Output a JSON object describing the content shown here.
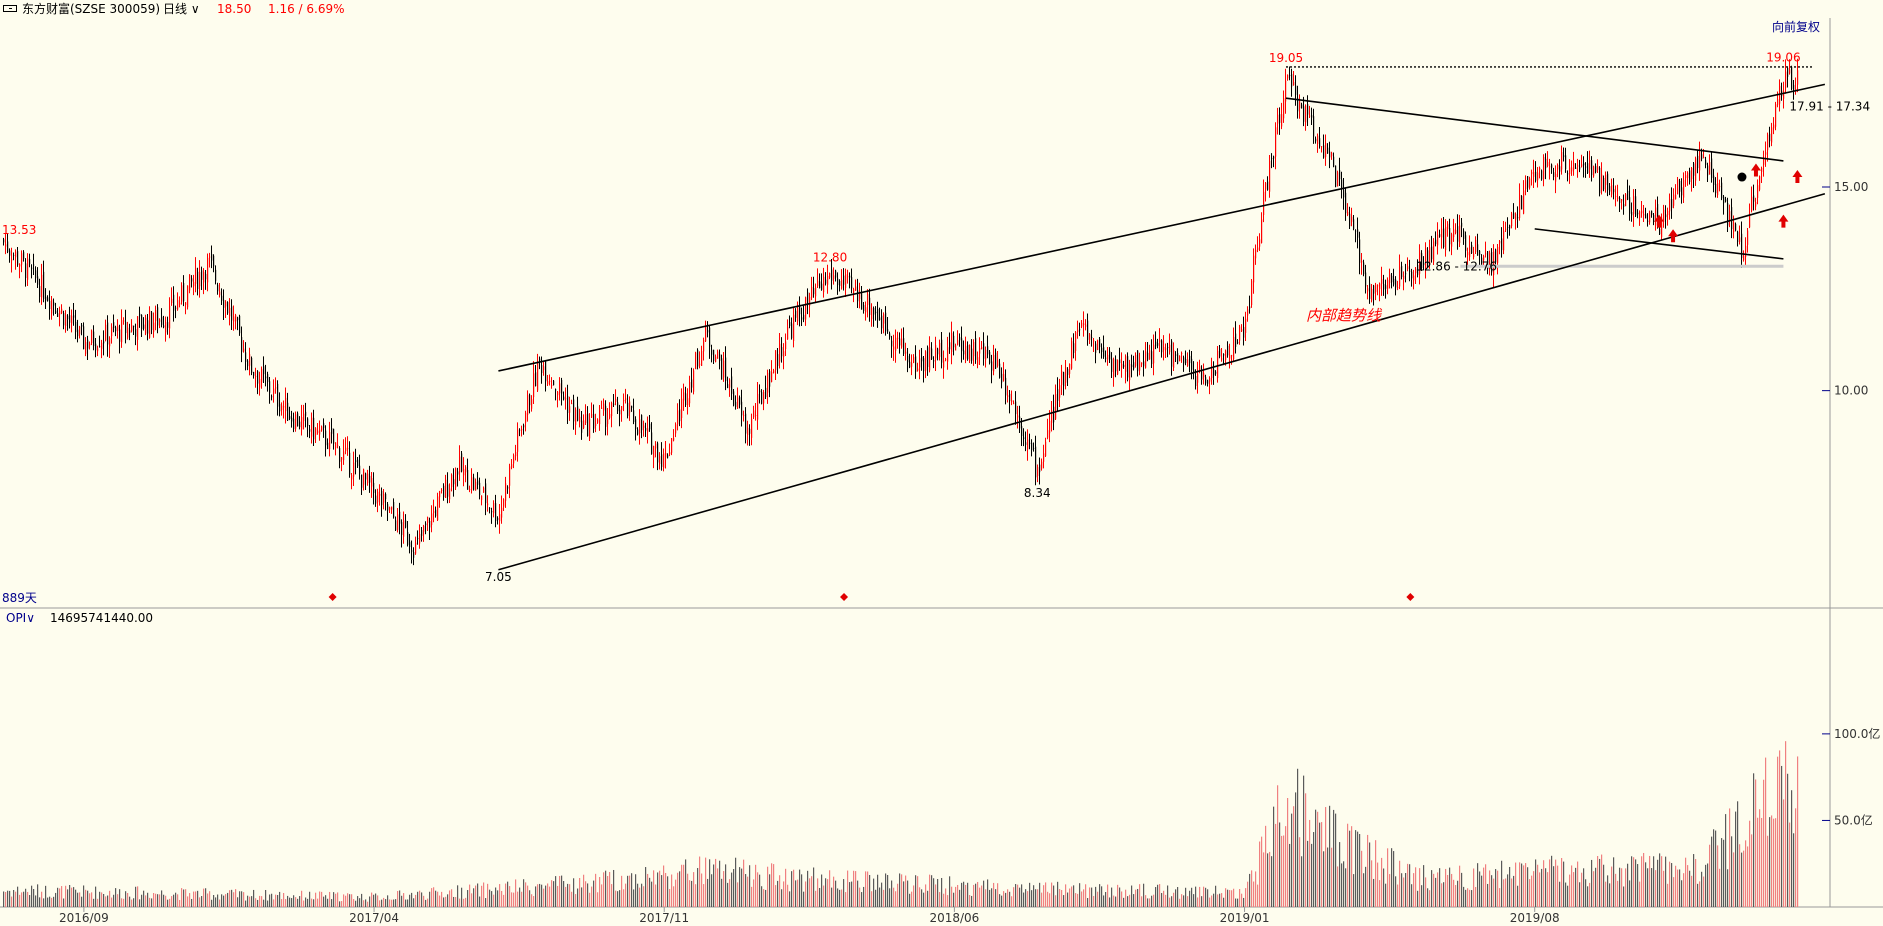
{
  "header": {
    "stock_name": "东方财富(SZSE 300059)",
    "period": "日线",
    "price": "18.50",
    "change": "1.16 / 6.69%"
  },
  "adjust_label": "向前复权",
  "day_count_label": "889天",
  "opi": {
    "label": "OPI",
    "value": "14695741440.00"
  },
  "colors": {
    "background": "#fefdee",
    "up": "#ff0000",
    "down": "#000000",
    "volume_up": "#f08080",
    "volume_down": "#5a5a5a",
    "label_blue": "#00008b"
  },
  "chart_data": {
    "type": "candlestick",
    "y_scale": "log",
    "x_tick_labels": [
      "2016/09",
      "2017/04",
      "2017/11",
      "2018/06",
      "2019/01",
      "2019/08"
    ],
    "price_axis": {
      "ticks": [
        10.0,
        15.0
      ],
      "tick_labels": [
        "10.00",
        "15.00"
      ],
      "range": [
        6.5,
        21.0
      ]
    },
    "volume_axis": {
      "ticks": [
        50,
        100
      ],
      "tick_labels": [
        "50.0亿",
        "100.0亿"
      ],
      "range": [
        0,
        160
      ]
    },
    "price_anchors": [
      {
        "date": "2016-07",
        "close": 13.5
      },
      {
        "date": "2016-09",
        "close": 11.0
      },
      {
        "date": "2016-11",
        "close": 11.6
      },
      {
        "date": "2016-12",
        "close": 12.9
      },
      {
        "date": "2017-01",
        "close": 10.5
      },
      {
        "date": "2017-02",
        "close": 9.5
      },
      {
        "date": "2017-03",
        "close": 9.0
      },
      {
        "date": "2017-05",
        "close": 7.3
      },
      {
        "date": "2017-06",
        "close": 8.6
      },
      {
        "date": "2017-07",
        "close": 7.8
      },
      {
        "date": "2017-08",
        "close": 10.6
      },
      {
        "date": "2017-09",
        "close": 9.3
      },
      {
        "date": "2017-10",
        "close": 9.7
      },
      {
        "date": "2017-11",
        "close": 8.7
      },
      {
        "date": "2017-12",
        "close": 11.2
      },
      {
        "date": "2018-01",
        "close": 9.2
      },
      {
        "date": "2018-02",
        "close": 11.3
      },
      {
        "date": "2018-03",
        "close": 12.6
      },
      {
        "date": "2018-04",
        "close": 11.8
      },
      {
        "date": "2018-05",
        "close": 10.5
      },
      {
        "date": "2018-06",
        "close": 11.0
      },
      {
        "date": "2018-07",
        "close": 10.6
      },
      {
        "date": "2018-08",
        "close": 8.5
      },
      {
        "date": "2018-09",
        "close": 11.4
      },
      {
        "date": "2018-10",
        "close": 10.4
      },
      {
        "date": "2018-11",
        "close": 10.9
      },
      {
        "date": "2018-12",
        "close": 10.2
      },
      {
        "date": "2019-01",
        "close": 11.3
      },
      {
        "date": "2019-02",
        "close": 18.5
      },
      {
        "date": "2019-03",
        "close": 16.0
      },
      {
        "date": "2019-04",
        "close": 12.2
      },
      {
        "date": "2019-05",
        "close": 12.6
      },
      {
        "date": "2019-06",
        "close": 13.8
      },
      {
        "date": "2019-07",
        "close": 12.9
      },
      {
        "date": "2019-08",
        "close": 15.5
      },
      {
        "date": "2019-09",
        "close": 15.8
      },
      {
        "date": "2019-10",
        "close": 14.7
      },
      {
        "date": "2019-11",
        "close": 14.0
      },
      {
        "date": "2019-12",
        "close": 16.0
      },
      {
        "date": "2020-01",
        "close": 13.2
      },
      {
        "date": "2020-02",
        "close": 18.5
      }
    ],
    "volume_anchors": [
      {
        "date": "2016-07",
        "value": 10
      },
      {
        "date": "2017-04",
        "value": 6
      },
      {
        "date": "2017-09",
        "value": 14
      },
      {
        "date": "2017-12",
        "value": 22
      },
      {
        "date": "2018-03",
        "value": 16
      },
      {
        "date": "2018-09",
        "value": 10
      },
      {
        "date": "2019-01",
        "value": 9
      },
      {
        "date": "2019-02",
        "value": 65
      },
      {
        "date": "2019-03",
        "value": 45
      },
      {
        "date": "2019-05",
        "value": 18
      },
      {
        "date": "2019-09",
        "value": 22
      },
      {
        "date": "2019-12",
        "value": 24
      },
      {
        "date": "2020-02",
        "value": 80
      }
    ],
    "price_labels": [
      {
        "text": "13.53",
        "date": "2016-07",
        "price": 13.53,
        "color": "red"
      },
      {
        "text": "7.05",
        "date": "2017-07",
        "price": 7.05,
        "color": "black"
      },
      {
        "text": "12.80",
        "date": "2018-03",
        "price": 12.8,
        "color": "red"
      },
      {
        "text": "8.34",
        "date": "2018-08",
        "price": 8.34,
        "color": "black"
      },
      {
        "text": "19.05",
        "date": "2019-02",
        "price": 19.05,
        "color": "red"
      },
      {
        "text": "19.06",
        "date": "2020-02",
        "price": 19.06,
        "color": "red"
      },
      {
        "text": "17.91 - 17.34",
        "date": "2020-02",
        "price": 17.6,
        "color": "black"
      },
      {
        "text": "12.86 - 12.76",
        "date": "2019-05",
        "price": 12.8,
        "color": "black"
      }
    ],
    "annotations": [
      {
        "text": "内部趋势线",
        "date": "2019-02",
        "price": 11.5,
        "color": "red"
      }
    ],
    "horizontal_levels": [
      19.05,
      12.81
    ],
    "trendlines": [
      {
        "name": "upper-channel",
        "from": {
          "date": "2017-07",
          "price": 10.4
        },
        "to": {
          "date": "2020-03",
          "price": 18.4
        }
      },
      {
        "name": "lower-channel",
        "from": {
          "date": "2017-07",
          "price": 7.0
        },
        "to": {
          "date": "2020-03",
          "price": 14.8
        }
      },
      {
        "name": "descending-resistance",
        "from": {
          "date": "2019-02",
          "price": 17.9
        },
        "to": {
          "date": "2020-02",
          "price": 15.8
        }
      },
      {
        "name": "descending-support",
        "from": {
          "date": "2019-08",
          "price": 13.8
        },
        "to": {
          "date": "2020-02",
          "price": 13.0
        }
      }
    ],
    "markers": [
      {
        "type": "diamond",
        "date": "2017-03"
      },
      {
        "type": "diamond",
        "date": "2018-03"
      },
      {
        "type": "diamond",
        "date": "2019-05"
      },
      {
        "type": "arrow",
        "date": "2019-11",
        "price": 13.6
      },
      {
        "type": "arrow",
        "date": "2019-11",
        "price": 14.0
      },
      {
        "type": "arrow",
        "date": "2020-01",
        "price": 15.5
      },
      {
        "type": "arrow",
        "date": "2020-02",
        "price": 14.0
      },
      {
        "type": "arrow",
        "date": "2020-02",
        "price": 15.3
      },
      {
        "type": "dot",
        "date": "2020-01",
        "price": 15.3
      }
    ]
  }
}
